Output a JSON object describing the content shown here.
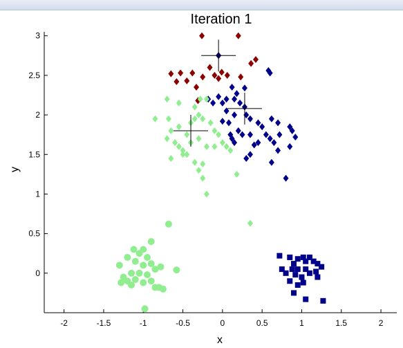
{
  "chart_data": {
    "type": "scatter",
    "title": "Iteration 1",
    "xlabel": "x",
    "ylabel": "y",
    "xlim": [
      -2.25,
      2.2
    ],
    "ylim": [
      -0.5,
      3.05
    ],
    "xticks": [
      -2,
      -1.5,
      -1,
      -0.5,
      0,
      0.5,
      1,
      1.5,
      2
    ],
    "xtick_labels": [
      "-2",
      "-1.5",
      "-1",
      "-0.5",
      "0",
      "0.5",
      "1",
      "1.5",
      "2"
    ],
    "yticks": [
      0,
      0.5,
      1,
      1.5,
      2,
      2.5,
      3
    ],
    "ytick_labels": [
      "0",
      "0.5",
      "1",
      "1.5",
      "2",
      "2.5",
      "3"
    ],
    "grid": false,
    "colors": {
      "dark_red": "#8b0000",
      "navy": "#00008b",
      "light_green": "#90ee90"
    },
    "series": [
      {
        "marker": "diamond",
        "color": "#8b0000",
        "points": [
          [
            -0.26,
            3.0
          ],
          [
            0.2,
            3.0
          ],
          [
            -0.05,
            2.75
          ],
          [
            -0.65,
            2.52
          ],
          [
            -0.53,
            2.53
          ],
          [
            -0.38,
            2.53
          ],
          [
            -0.25,
            2.48
          ],
          [
            -0.16,
            2.6
          ],
          [
            -0.1,
            2.5
          ],
          [
            -0.01,
            2.54
          ],
          [
            0.06,
            2.5
          ],
          [
            0.23,
            2.48
          ],
          [
            0.36,
            2.65
          ],
          [
            0.42,
            2.7
          ],
          [
            -0.58,
            2.42
          ],
          [
            -0.45,
            2.43
          ],
          [
            -0.33,
            2.35
          ],
          [
            -0.05,
            2.46
          ],
          [
            -0.31,
            2.18
          ]
        ]
      },
      {
        "marker": "diamond",
        "color": "#00008b",
        "points": [
          [
            -0.05,
            2.75
          ],
          [
            0.58,
            2.56
          ],
          [
            0.6,
            2.53
          ],
          [
            0.12,
            2.35
          ],
          [
            0.18,
            2.27
          ],
          [
            0.28,
            2.34
          ],
          [
            -0.18,
            2.2
          ],
          [
            -0.12,
            2.15
          ],
          [
            0.0,
            2.15
          ],
          [
            -0.05,
            2.23
          ],
          [
            0.05,
            2.2
          ],
          [
            0.15,
            2.2
          ],
          [
            0.22,
            2.15
          ],
          [
            0.28,
            2.1
          ],
          [
            0.3,
            2.0
          ],
          [
            0.35,
            1.95
          ],
          [
            0.15,
            2.0
          ],
          [
            0.05,
            2.05
          ],
          [
            0.0,
            1.92
          ],
          [
            0.08,
            1.9
          ],
          [
            0.1,
            1.75
          ],
          [
            0.12,
            1.7
          ],
          [
            0.15,
            1.65
          ],
          [
            0.2,
            1.8
          ],
          [
            0.25,
            1.75
          ],
          [
            0.35,
            1.75
          ],
          [
            0.45,
            1.9
          ],
          [
            0.5,
            1.85
          ],
          [
            0.55,
            1.75
          ],
          [
            0.62,
            1.95
          ],
          [
            0.7,
            1.9
          ],
          [
            0.72,
            1.75
          ],
          [
            0.65,
            1.65
          ],
          [
            0.6,
            1.7
          ],
          [
            0.45,
            1.65
          ],
          [
            0.4,
            1.62
          ],
          [
            0.35,
            1.5
          ],
          [
            0.3,
            1.45
          ],
          [
            0.62,
            1.4
          ],
          [
            0.7,
            1.55
          ],
          [
            0.85,
            1.85
          ],
          [
            0.88,
            1.8
          ],
          [
            0.92,
            1.72
          ],
          [
            0.85,
            1.6
          ],
          [
            0.8,
            1.2
          ]
        ]
      },
      {
        "marker": "diamond",
        "color": "#90ee90",
        "points": [
          [
            -0.7,
            2.2
          ],
          [
            -0.55,
            2.15
          ],
          [
            -0.35,
            2.1
          ],
          [
            -0.28,
            2.2
          ],
          [
            -0.2,
            2.2
          ],
          [
            -0.85,
            1.95
          ],
          [
            -0.68,
            1.95
          ],
          [
            -0.65,
            1.8
          ],
          [
            -0.55,
            1.85
          ],
          [
            -0.45,
            1.75
          ],
          [
            -0.4,
            1.9
          ],
          [
            -0.35,
            1.95
          ],
          [
            -0.3,
            2.0
          ],
          [
            -0.25,
            1.95
          ],
          [
            -0.15,
            1.9
          ],
          [
            -0.1,
            1.8
          ],
          [
            -0.05,
            1.75
          ],
          [
            0.0,
            1.65
          ],
          [
            -0.7,
            1.7
          ],
          [
            -0.6,
            1.65
          ],
          [
            -0.5,
            1.55
          ],
          [
            -0.4,
            1.65
          ],
          [
            -0.3,
            1.7
          ],
          [
            -0.2,
            1.6
          ],
          [
            -0.1,
            1.6
          ],
          [
            0.05,
            1.6
          ],
          [
            0.1,
            1.55
          ],
          [
            -0.65,
            1.45
          ],
          [
            -0.5,
            1.5
          ],
          [
            -0.35,
            1.4
          ],
          [
            -0.25,
            1.38
          ],
          [
            -0.3,
            1.3
          ],
          [
            -0.25,
            1.2
          ],
          [
            -0.2,
            1.0
          ],
          [
            0.18,
            1.25
          ],
          [
            0.35,
            0.63
          ],
          [
            -0.55,
            1.6
          ],
          [
            -0.45,
            1.5
          ]
        ]
      },
      {
        "marker": "circle",
        "color": "#90ee90",
        "points": [
          [
            -0.68,
            0.62
          ],
          [
            -0.9,
            0.4
          ],
          [
            -1.0,
            0.3
          ],
          [
            -1.12,
            0.3
          ],
          [
            -1.05,
            0.25
          ],
          [
            -1.2,
            0.2
          ],
          [
            -0.95,
            0.2
          ],
          [
            -1.3,
            0.1
          ],
          [
            -1.1,
            0.15
          ],
          [
            -1.0,
            0.1
          ],
          [
            -0.9,
            0.12
          ],
          [
            -0.85,
            0.05
          ],
          [
            -0.78,
            0.08
          ],
          [
            -0.58,
            0.04
          ],
          [
            -1.15,
            0.0
          ],
          [
            -1.05,
            0.0
          ],
          [
            -0.95,
            -0.02
          ],
          [
            -1.25,
            -0.05
          ],
          [
            -1.2,
            -0.1
          ],
          [
            -1.1,
            -0.08
          ],
          [
            -1.0,
            -0.12
          ],
          [
            -0.9,
            -0.1
          ],
          [
            -0.8,
            -0.18
          ],
          [
            -1.28,
            -0.12
          ],
          [
            -1.15,
            -0.15
          ],
          [
            -0.85,
            -0.18
          ],
          [
            -0.75,
            -0.2
          ],
          [
            -0.98,
            -0.45
          ]
        ]
      },
      {
        "marker": "square",
        "color": "#00008b",
        "points": [
          [
            0.72,
            0.22
          ],
          [
            0.85,
            0.2
          ],
          [
            1.02,
            0.2
          ],
          [
            1.1,
            0.2
          ],
          [
            1.05,
            0.15
          ],
          [
            0.95,
            0.18
          ],
          [
            0.9,
            0.12
          ],
          [
            1.15,
            0.15
          ],
          [
            1.2,
            0.12
          ],
          [
            1.25,
            0.08
          ],
          [
            0.75,
            0.05
          ],
          [
            0.88,
            0.05
          ],
          [
            0.95,
            0.05
          ],
          [
            1.05,
            0.05
          ],
          [
            1.1,
            0.0
          ],
          [
            0.8,
            0.0
          ],
          [
            0.92,
            -0.02
          ],
          [
            1.0,
            -0.05
          ],
          [
            0.85,
            -0.1
          ],
          [
            1.02,
            -0.12
          ],
          [
            0.95,
            -0.15
          ],
          [
            0.9,
            -0.25
          ],
          [
            1.05,
            -0.33
          ],
          [
            1.27,
            -0.35
          ],
          [
            1.2,
            -0.05
          ],
          [
            1.18,
            0.02
          ]
        ]
      }
    ],
    "centroids": [
      [
        -0.05,
        2.75
      ],
      [
        0.28,
        2.08
      ],
      [
        -0.4,
        1.8
      ]
    ]
  }
}
